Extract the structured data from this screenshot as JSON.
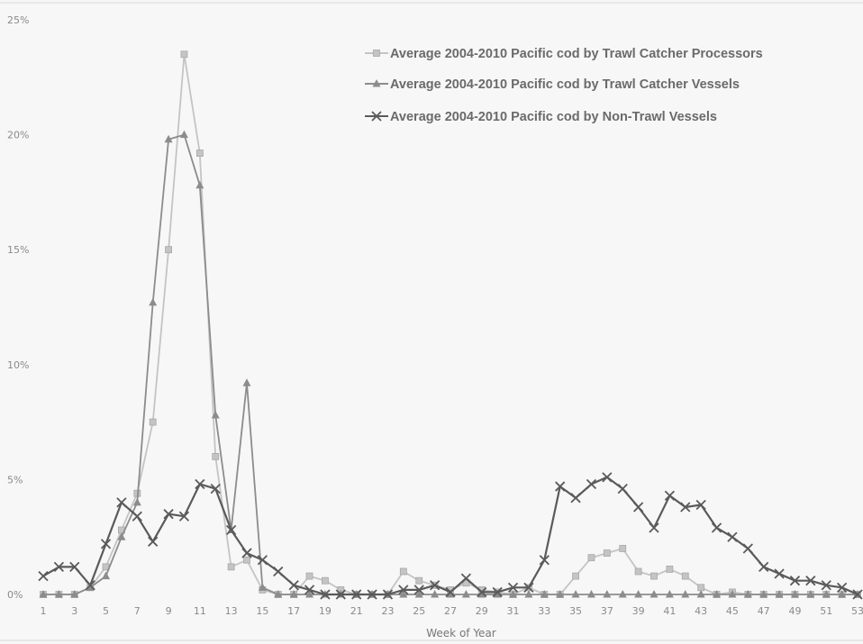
{
  "chart_data": {
    "type": "line",
    "xlabel": "Week of Year",
    "ylabel": "",
    "ylim": [
      0,
      25
    ],
    "xlim": [
      1,
      53
    ],
    "y_ticks": [
      "0%",
      "5%",
      "10%",
      "15%",
      "20%",
      "25%"
    ],
    "x_ticks": [
      "1",
      "3",
      "5",
      "7",
      "9",
      "11",
      "13",
      "15",
      "17",
      "19",
      "21",
      "23",
      "25",
      "27",
      "29",
      "31",
      "33",
      "35",
      "37",
      "39",
      "41",
      "43",
      "45",
      "47",
      "49",
      "51",
      "53"
    ],
    "legend_position": "top-right",
    "grid": false,
    "series": [
      {
        "name": "Average 2004-2010 Pacific cod by Trawl Catcher Processors",
        "color": "#c4c4c4",
        "marker": "square",
        "x": [
          1,
          2,
          3,
          4,
          5,
          6,
          7,
          8,
          9,
          10,
          11,
          12,
          13,
          14,
          15,
          16,
          17,
          18,
          19,
          20,
          21,
          22,
          23,
          24,
          25,
          26,
          27,
          28,
          29,
          30,
          31,
          32,
          33,
          34,
          35,
          36,
          37,
          38,
          39,
          40,
          41,
          42,
          43,
          44,
          45,
          46,
          47,
          48,
          49,
          50,
          51,
          52,
          53
        ],
        "values": [
          0,
          0,
          0,
          0.3,
          1.2,
          2.8,
          4.4,
          7.5,
          15,
          23.5,
          19.2,
          6,
          1.2,
          1.5,
          0.2,
          0,
          0,
          0.8,
          0.6,
          0.2,
          0,
          0,
          0,
          1,
          0.6,
          0.4,
          0.2,
          0.5,
          0.2,
          0.1,
          0,
          0.3,
          0,
          0,
          0.8,
          1.6,
          1.8,
          2,
          1,
          0.8,
          1.1,
          0.8,
          0.3,
          0,
          0.1,
          0,
          0,
          0,
          0,
          0,
          0,
          0,
          0
        ]
      },
      {
        "name": "Average 2004-2010 Pacific cod by Trawl Catcher Vessels",
        "color": "#8c8c8c",
        "marker": "triangle",
        "x": [
          1,
          2,
          3,
          4,
          5,
          6,
          7,
          8,
          9,
          10,
          11,
          12,
          13,
          14,
          15,
          16,
          17,
          18,
          19,
          20,
          21,
          22,
          23,
          24,
          25,
          26,
          27,
          28,
          29,
          30,
          31,
          32,
          33,
          34,
          35,
          36,
          37,
          38,
          39,
          40,
          41,
          42,
          43,
          44,
          45,
          46,
          47,
          48,
          49,
          50,
          51,
          52,
          53
        ],
        "values": [
          0,
          0,
          0,
          0.3,
          0.8,
          2.5,
          4,
          12.7,
          19.8,
          20,
          17.8,
          7.8,
          2.8,
          9.2,
          0.3,
          0,
          0,
          0,
          0,
          0,
          0,
          0,
          0,
          0,
          0,
          0,
          0,
          0,
          0,
          0,
          0,
          0,
          0,
          0,
          0,
          0,
          0,
          0,
          0,
          0,
          0,
          0,
          0,
          0,
          0,
          0,
          0,
          0,
          0,
          0,
          0,
          0,
          0
        ]
      },
      {
        "name": "Average 2004-2010 Pacific cod by Non-Trawl Vessels",
        "color": "#5a5a5a",
        "marker": "x",
        "x": [
          1,
          2,
          3,
          4,
          5,
          6,
          7,
          8,
          9,
          10,
          11,
          12,
          13,
          14,
          15,
          16,
          17,
          18,
          19,
          20,
          21,
          22,
          23,
          24,
          25,
          26,
          27,
          28,
          29,
          30,
          31,
          32,
          33,
          34,
          35,
          36,
          37,
          38,
          39,
          40,
          41,
          42,
          43,
          44,
          45,
          46,
          47,
          48,
          49,
          50,
          51,
          52,
          53
        ],
        "values": [
          0.8,
          1.2,
          1.2,
          0.4,
          2.2,
          4,
          3.4,
          2.3,
          3.5,
          3.4,
          4.8,
          4.6,
          2.8,
          1.8,
          1.5,
          1,
          0.4,
          0.2,
          0,
          0,
          0,
          0,
          0,
          0.2,
          0.2,
          0.4,
          0.1,
          0.7,
          0.1,
          0.1,
          0.3,
          0.3,
          1.5,
          4.7,
          4.2,
          4.8,
          5.1,
          4.6,
          3.8,
          2.9,
          4.3,
          3.8,
          3.9,
          2.9,
          2.5,
          2,
          1.2,
          0.9,
          0.6,
          0.6,
          0.4,
          0.3,
          0
        ]
      }
    ]
  }
}
